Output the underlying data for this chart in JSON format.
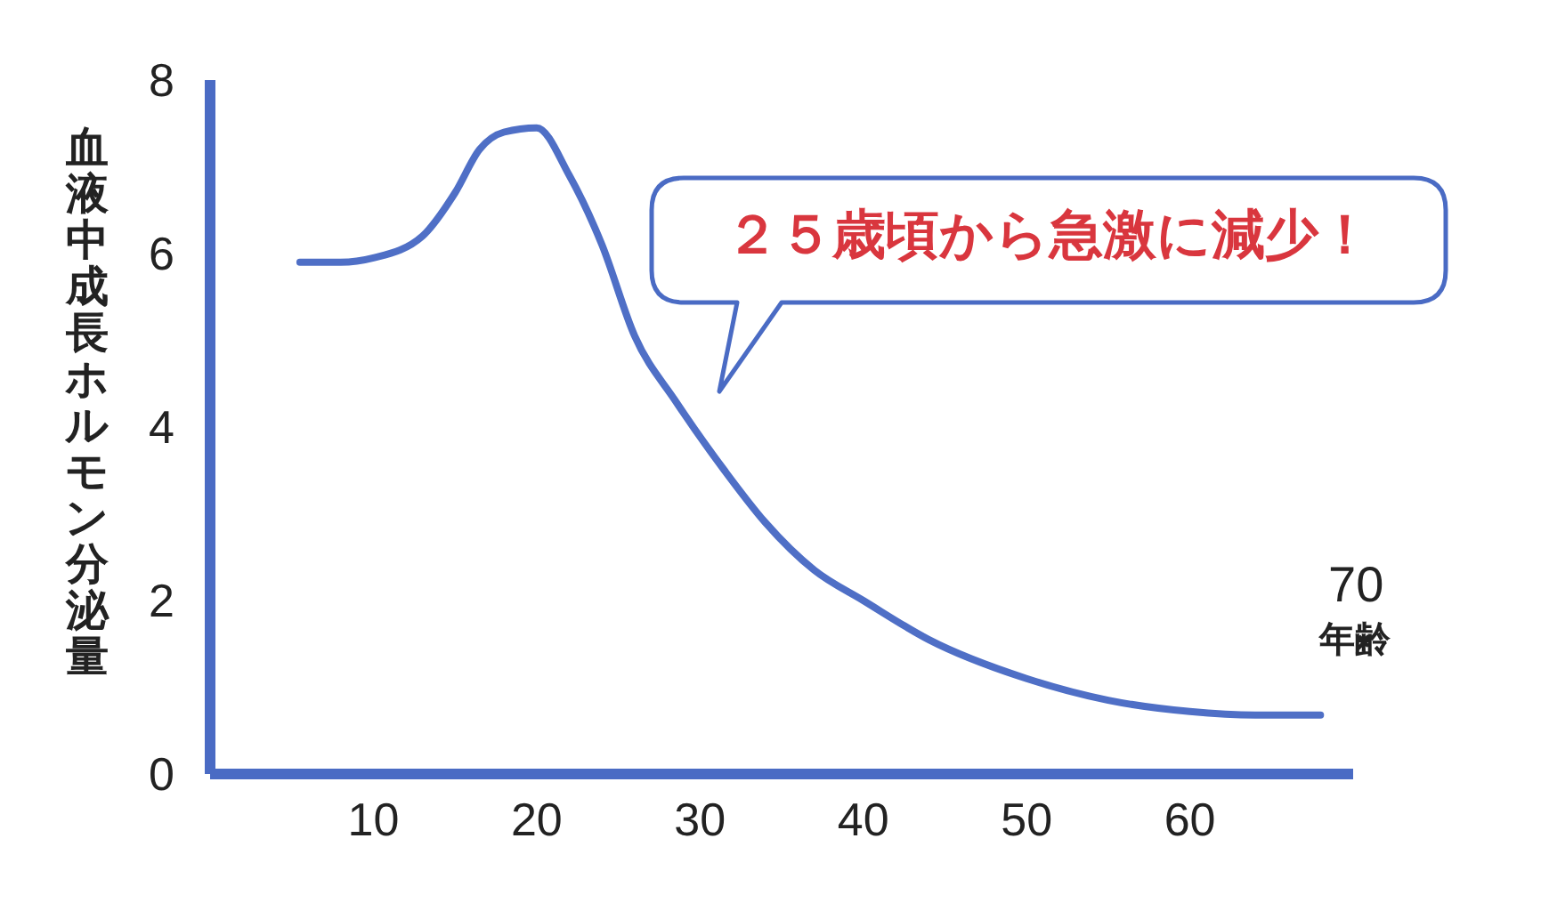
{
  "chart_data": {
    "type": "line",
    "ylabel": "血液中成長ホルモン分泌量",
    "xlabel": "年齢",
    "x": [
      5.5,
      8,
      10,
      13,
      15,
      16.5,
      18,
      20,
      22,
      24,
      26,
      28.5,
      31.5,
      34,
      37,
      40,
      44,
      50,
      55,
      60,
      64,
      68
    ],
    "series": [
      {
        "color": "#4f6fc6",
        "values": [
          5.9,
          5.9,
          5.95,
          6.2,
          6.7,
          7.2,
          7.4,
          7.45,
          6.9,
          6.1,
          5.05,
          4.3,
          3.5,
          2.9,
          2.35,
          2.0,
          1.55,
          1.1,
          0.85,
          0.72,
          0.68,
          0.68
        ]
      }
    ],
    "xlim": [
      0,
      70
    ],
    "xticks": [
      10,
      20,
      30,
      40,
      50,
      60
    ],
    "ylim": [
      0,
      8
    ],
    "yticks": [
      0,
      2,
      4,
      6,
      8
    ],
    "marker": "none",
    "line_style": "solid",
    "annotations": [
      "２５歳頃から急激に減少！",
      "70"
    ]
  }
}
